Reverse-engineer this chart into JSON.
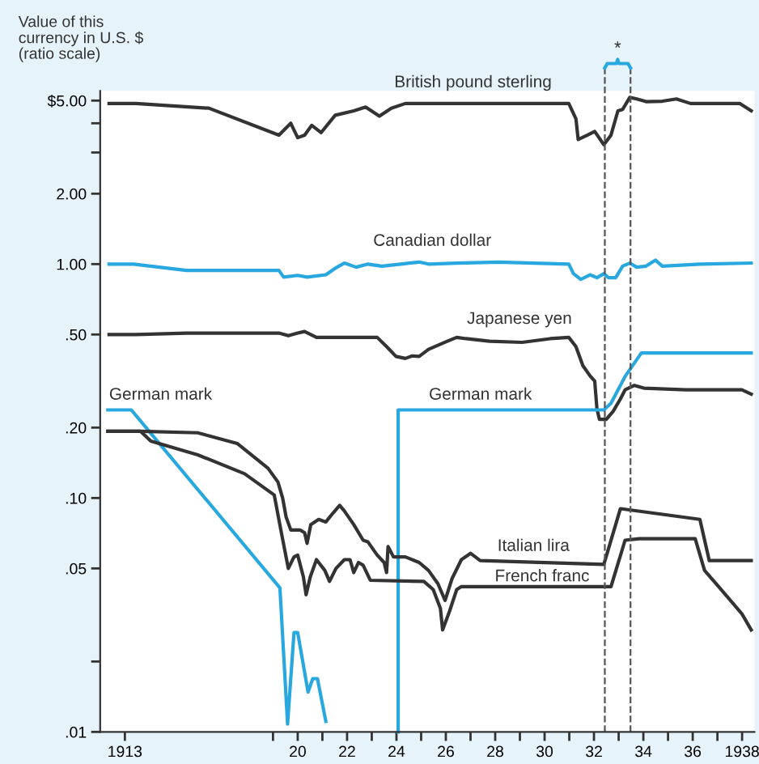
{
  "chart_data": {
    "type": "line",
    "ylabel": "Value of this\ncurrency in U.S. $\n(ratio scale)",
    "log": true,
    "grid": false,
    "legend": false,
    "marker": "none",
    "line_style": "solid",
    "xlim": [
      1912,
      1938.5
    ],
    "ylim": [
      0.01,
      5.5
    ],
    "xticks": [
      1913,
      {
        "value": 1919,
        "label": null
      },
      {
        "value": 1920,
        "label": "20"
      },
      {
        "value": 1921,
        "label": null
      },
      {
        "value": 1922,
        "label": "22"
      },
      {
        "value": 1923,
        "label": null
      },
      {
        "value": 1924,
        "label": "24"
      },
      {
        "value": 1925,
        "label": null
      },
      {
        "value": 1926,
        "label": "26"
      },
      {
        "value": 1927,
        "label": null
      },
      {
        "value": 1928,
        "label": "28"
      },
      {
        "value": 1929,
        "label": null
      },
      {
        "value": 1930,
        "label": "30"
      },
      {
        "value": 1931,
        "label": null
      },
      {
        "value": 1932,
        "label": "32"
      },
      {
        "value": 1933,
        "label": null
      },
      {
        "value": 1934,
        "label": "34"
      },
      {
        "value": 1935,
        "label": null
      },
      {
        "value": 1936,
        "label": "36"
      },
      {
        "value": 1937,
        "label": null
      },
      {
        "value": 1938,
        "label": "1938"
      }
    ],
    "yticks": [
      {
        "value": 0.01,
        "label": ".01"
      },
      {
        "value": 0.02,
        "label": null
      },
      {
        "value": 0.05,
        "label": ".05"
      },
      {
        "value": 0.1,
        "label": ".10"
      },
      {
        "value": 0.2,
        "label": ".20"
      },
      {
        "value": 0.5,
        "label": ".50"
      },
      {
        "value": 1,
        "label": "1.00"
      },
      {
        "value": 2,
        "label": "2.00"
      },
      {
        "value": 3,
        "label": null
      },
      {
        "value": 4,
        "label": null
      },
      {
        "value": 5,
        "label": "$5.00"
      }
    ],
    "ref_lines": [
      {
        "axis": "x",
        "value": 1932.44,
        "line_style": "dashed",
        "color": "#555555"
      },
      {
        "axis": "x",
        "value": 1933.48,
        "line_style": "dashed",
        "color": "#555555"
      }
    ],
    "annotations": [
      "*"
    ],
    "series": [
      {
        "name": "British pound sterling",
        "color": "#333333",
        "x": [
          1912.36,
          1913.44,
          1916.4,
          1919.24,
          1919.72,
          1920.0,
          1920.28,
          1920.57,
          1920.95,
          1921.52,
          1922.27,
          1922.75,
          1923.31,
          1923.79,
          1924.36,
          1930.98,
          1931.27,
          1931.36,
          1931.74,
          1932.03,
          1932.4,
          1932.69,
          1932.97,
          1933.16,
          1933.45,
          1933.73,
          1934.11,
          1934.77,
          1935.34,
          1935.91,
          1937.9,
          1938.37
        ],
        "values": [
          4.86,
          4.86,
          4.64,
          3.56,
          4.0,
          3.47,
          3.56,
          3.92,
          3.65,
          4.33,
          4.52,
          4.69,
          4.29,
          4.64,
          4.86,
          4.86,
          4.18,
          3.41,
          3.56,
          3.69,
          3.24,
          3.56,
          4.52,
          4.58,
          5.16,
          5.08,
          4.95,
          4.97,
          5.08,
          4.86,
          4.86,
          4.52
        ]
      },
      {
        "name": "Canadian dollar",
        "color": "#29a8e0",
        "x": [
          1912.36,
          1913.35,
          1915.5,
          1919.24,
          1919.43,
          1920.0,
          1920.38,
          1921.14,
          1921.52,
          1921.89,
          1922.37,
          1922.84,
          1923.41,
          1924.17,
          1924.92,
          1925.3,
          1926.44,
          1928.14,
          1930.98,
          1931.17,
          1931.46,
          1931.84,
          1932.12,
          1932.4,
          1932.59,
          1932.88,
          1933.16,
          1933.45,
          1933.73,
          1934.11,
          1934.49,
          1934.77,
          1936.29,
          1938.37
        ],
        "values": [
          1.0,
          1.0,
          0.94,
          0.94,
          0.88,
          0.895,
          0.88,
          0.9,
          0.96,
          1.01,
          0.97,
          1.0,
          0.98,
          1.0,
          1.02,
          1.0,
          1.01,
          1.02,
          1.0,
          0.91,
          0.86,
          0.9,
          0.875,
          0.91,
          0.875,
          0.875,
          0.98,
          1.01,
          0.97,
          0.98,
          1.04,
          0.98,
          1.0,
          1.01
        ]
      },
      {
        "name": "Japanese yen",
        "color": "#333333",
        "x": [
          1912.36,
          1913.44,
          1915.5,
          1919.24,
          1919.62,
          1920.0,
          1920.28,
          1920.76,
          1923.22,
          1923.6,
          1923.98,
          1924.36,
          1924.64,
          1924.92,
          1925.3,
          1926.06,
          1926.44,
          1926.82,
          1927.77,
          1929.09,
          1930.23,
          1930.98,
          1931.27,
          1931.55,
          1931.84,
          1932.03,
          1932.12,
          1932.22,
          1932.5,
          1932.78,
          1933.07,
          1933.26,
          1933.64,
          1934.02,
          1935.72,
          1937.99,
          1938.37
        ],
        "values": [
          0.5,
          0.5,
          0.507,
          0.507,
          0.494,
          0.507,
          0.515,
          0.486,
          0.486,
          0.444,
          0.403,
          0.395,
          0.405,
          0.403,
          0.432,
          0.468,
          0.486,
          0.48,
          0.468,
          0.463,
          0.48,
          0.486,
          0.444,
          0.368,
          0.333,
          0.316,
          0.241,
          0.217,
          0.217,
          0.235,
          0.265,
          0.29,
          0.303,
          0.295,
          0.29,
          0.29,
          0.278
        ]
      },
      {
        "name": "German mark",
        "color": "#29a8e0",
        "x": [
          1912.31,
          1913.26,
          1919.28,
          1919.59,
          1919.85,
          1920.0,
          1920.42,
          1920.61,
          1920.8,
          1921.14
        ],
        "values": [
          0.238,
          0.238,
          0.0413,
          0.0108,
          0.0266,
          0.0266,
          0.0148,
          0.0169,
          0.0169,
          0.0111
        ]
      },
      {
        "name": "German mark",
        "color": "#29a8e0",
        "x": [
          1924.07,
          1924.07,
          1932.4,
          1932.69,
          1933.26,
          1933.92,
          1938.37
        ],
        "values": [
          0.01,
          0.238,
          0.238,
          0.254,
          0.331,
          0.417,
          0.417
        ]
      },
      {
        "name": "Italian lira",
        "color": "#333333",
        "x": [
          1912.31,
          1913.63,
          1915.95,
          1917.55,
          1918.8,
          1919.2,
          1919.39,
          1919.53,
          1919.72,
          1920.09,
          1920.28,
          1920.38,
          1920.53,
          1920.85,
          1921.14,
          1921.42,
          1921.7,
          1921.89,
          1922.27,
          1922.65,
          1922.84,
          1923.22,
          1923.5,
          1923.6,
          1923.66,
          1923.88,
          1924.36,
          1924.92,
          1925.3,
          1925.68,
          1925.97,
          1926.25,
          1926.63,
          1927.0,
          1927.39,
          1932.4,
          1933.07,
          1936.29,
          1936.67,
          1938.37
        ],
        "values": [
          0.193,
          0.193,
          0.19,
          0.171,
          0.134,
          0.117,
          0.1,
          0.083,
          0.073,
          0.073,
          0.071,
          0.064,
          0.077,
          0.081,
          0.079,
          0.086,
          0.093,
          0.088,
          0.077,
          0.066,
          0.065,
          0.057,
          0.053,
          0.048,
          0.062,
          0.056,
          0.056,
          0.053,
          0.049,
          0.043,
          0.0365,
          0.0452,
          0.0545,
          0.058,
          0.054,
          0.052,
          0.09,
          0.081,
          0.054,
          0.054
        ]
      },
      {
        "name": "French franc",
        "color": "#333333",
        "x": [
          1912.31,
          1913.63,
          1914.05,
          1915.95,
          1917.85,
          1919.05,
          1919.34,
          1919.62,
          1919.85,
          1920.0,
          1920.23,
          1920.34,
          1920.51,
          1920.76,
          1921.1,
          1921.29,
          1921.55,
          1921.89,
          1922.12,
          1922.27,
          1922.46,
          1922.65,
          1922.94,
          1925.11,
          1925.49,
          1925.78,
          1925.87,
          1926.15,
          1926.44,
          1926.63,
          1932.69,
          1933.26,
          1933.83,
          1936.1,
          1936.48,
          1937.05,
          1937.99,
          1938.37
        ],
        "values": [
          0.193,
          0.193,
          0.175,
          0.153,
          0.127,
          0.103,
          0.071,
          0.05,
          0.056,
          0.057,
          0.046,
          0.0386,
          0.046,
          0.0545,
          0.049,
          0.044,
          0.05,
          0.0545,
          0.0545,
          0.048,
          0.053,
          0.0516,
          0.0445,
          0.044,
          0.0406,
          0.0337,
          0.0273,
          0.0328,
          0.0406,
          0.0418,
          0.0418,
          0.066,
          0.067,
          0.067,
          0.049,
          0.0418,
          0.032,
          0.0273
        ]
      }
    ]
  }
}
